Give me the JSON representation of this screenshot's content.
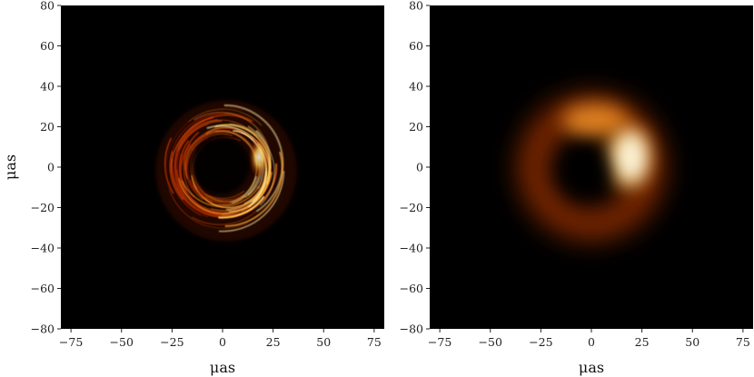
{
  "chart_data": [
    {
      "type": "heatmap",
      "title": "",
      "xlabel": "μas",
      "ylabel": "μas",
      "xlim": [
        -80,
        80
      ],
      "ylim": [
        -80,
        80
      ],
      "xticks": [
        -75,
        -50,
        -25,
        0,
        25,
        50,
        75
      ],
      "xtick_labels": [
        "−75",
        "−50",
        "−25",
        "0",
        "25",
        "50",
        "75"
      ],
      "yticks": [
        80,
        60,
        40,
        20,
        0,
        -20,
        -40,
        -60,
        -80
      ],
      "ytick_labels": [
        "80",
        "60",
        "40",
        "20",
        "0",
        "−20",
        "−40",
        "−60",
        "−80"
      ],
      "colormap": "afmhot",
      "background_color": "#000000",
      "image": "ring image with filamentary structure, brightest on right side",
      "ring_center": [
        0,
        0
      ],
      "ring_radius": 20,
      "bright_peak": [
        18,
        5
      ]
    },
    {
      "type": "heatmap",
      "title": "",
      "xlabel": "μas",
      "ylabel": "",
      "xlim": [
        -80,
        80
      ],
      "ylim": [
        -80,
        80
      ],
      "xticks": [
        -75,
        -50,
        -25,
        0,
        25,
        50,
        75
      ],
      "xtick_labels": [
        "−75",
        "−50",
        "−25",
        "0",
        "25",
        "50",
        "75"
      ],
      "yticks": [
        80,
        60,
        40,
        20,
        0,
        -20,
        -40,
        -60,
        -80
      ],
      "ytick_labels": [
        "80",
        "60",
        "40",
        "20",
        "0",
        "−20",
        "−40",
        "−60",
        "−80"
      ],
      "colormap": "afmhot",
      "background_color": "#000000",
      "image": "blurred ring, bright crescent on right side",
      "ring_center": [
        0,
        0
      ],
      "ring_radius": 22,
      "bright_peak": [
        18,
        5
      ]
    }
  ]
}
